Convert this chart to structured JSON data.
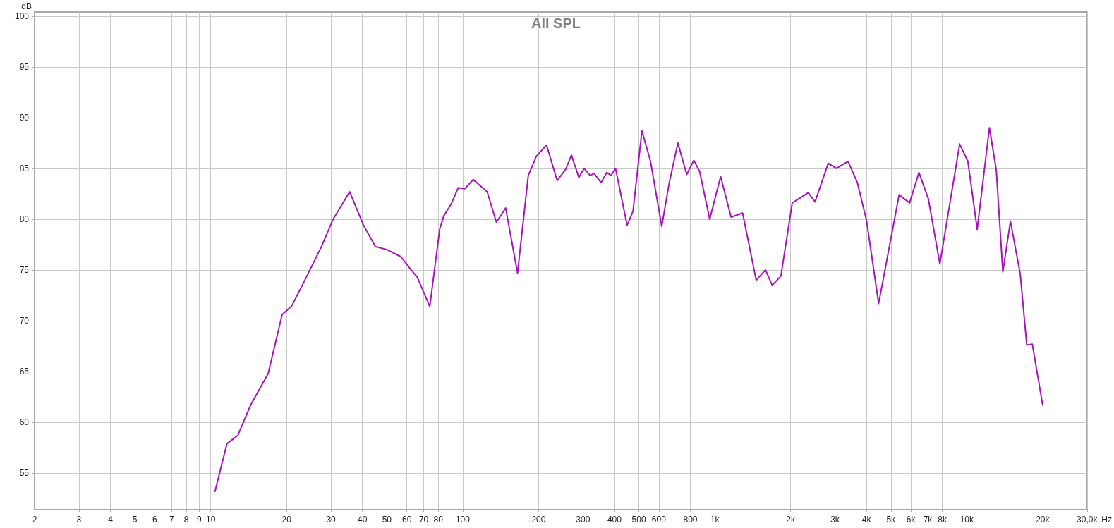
{
  "chart_data": {
    "type": "line",
    "title": "All SPL",
    "xlabel": "Hz",
    "ylabel": "dB",
    "log": "x",
    "grid": true,
    "marker": "none",
    "line_style": "solid",
    "xlim": [
      2,
      30000
    ],
    "ylim": [
      51.4,
      100.4
    ],
    "xticks": [
      2,
      3,
      4,
      5,
      6,
      7,
      8,
      9,
      10,
      20,
      30,
      40,
      50,
      60,
      70,
      80,
      100,
      200,
      300,
      400,
      500,
      600,
      800,
      {
        "value": 1000,
        "label": "1k"
      },
      {
        "value": 2000,
        "label": "2k"
      },
      {
        "value": 3000,
        "label": "3k"
      },
      {
        "value": 4000,
        "label": "4k"
      },
      {
        "value": 5000,
        "label": "5k"
      },
      {
        "value": 6000,
        "label": "6k"
      },
      {
        "value": 7000,
        "label": "7k"
      },
      {
        "value": 8000,
        "label": "8k"
      },
      {
        "value": 10000,
        "label": "10k"
      },
      {
        "value": 20000,
        "label": "20k"
      },
      {
        "value": 30000,
        "label": "30,0k"
      }
    ],
    "yticks": [
      55,
      60,
      65,
      70,
      75,
      80,
      85,
      90,
      95,
      100
    ],
    "series": [
      {
        "color": "#a516b8",
        "x": [
          10.4,
          11.6,
          12.8,
          14.4,
          16.9,
          19.2,
          20.9,
          23.2,
          27.5,
          30.6,
          35.6,
          40.4,
          45,
          50,
          56.9,
          62,
          66,
          74,
          81,
          84,
          90,
          96,
          102,
          110,
          125,
          136,
          148,
          165,
          182,
          196,
          215,
          237,
          256,
          270,
          289,
          303,
          320,
          332,
          354,
          373,
          387,
          404,
          449,
          474,
          514,
          556,
          616,
          660,
          714,
          774,
          826,
          871,
          955,
          1055,
          1161,
          1290,
          1460,
          1590,
          1690,
          1830,
          2030,
          2350,
          2500,
          2820,
          3040,
          3380,
          3680,
          4000,
          4470,
          5390,
          5930,
          6460,
          7040,
          7820,
          9370,
          10100,
          11000,
          12300,
          13100,
          13900,
          14900,
          16300,
          17300,
          18200,
          20000
        ],
        "values": [
          53.2,
          57.9,
          58.7,
          61.7,
          64.8,
          70.6,
          71.4,
          73.6,
          77.3,
          80,
          82.7,
          79.4,
          77.3,
          77,
          76.3,
          75.1,
          74.3,
          71.4,
          79,
          80.3,
          81.5,
          83.1,
          83,
          83.9,
          82.7,
          79.7,
          81.1,
          74.7,
          84.3,
          86.2,
          87.3,
          83.8,
          84.9,
          86.3,
          84.1,
          85,
          84.3,
          84.5,
          83.6,
          84.6,
          84.3,
          85,
          79.4,
          80.8,
          88.7,
          85.7,
          79.3,
          83.6,
          87.5,
          84.4,
          85.8,
          84.7,
          80,
          84.2,
          80.2,
          80.6,
          74,
          75,
          73.5,
          74.4,
          81.6,
          82.6,
          81.7,
          85.5,
          85,
          85.7,
          83.6,
          79.9,
          71.7,
          82.4,
          81.6,
          84.6,
          82,
          75.6,
          87.4,
          85.7,
          79,
          89,
          84.8,
          74.8,
          79.8,
          74.6,
          67.6,
          67.7,
          61.7
        ]
      }
    ]
  }
}
